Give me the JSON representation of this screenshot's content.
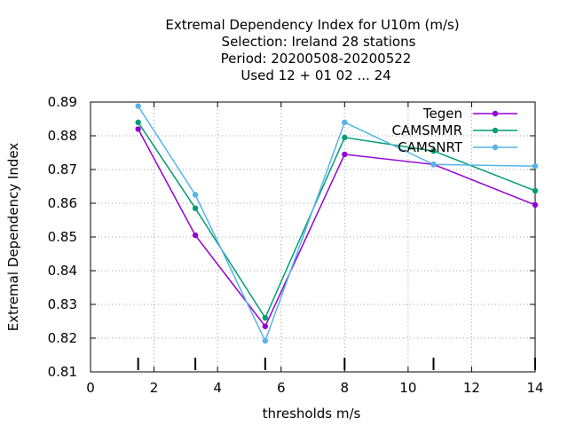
{
  "chart_data": {
    "type": "line",
    "title_lines": [
      "Extremal Dependency Index  for U10m (m/s)",
      "Selection: Ireland     28 stations",
      "Period: 20200508-20200522",
      "Used  12 + 01 02 ... 24"
    ],
    "xlabel": "thresholds m/s",
    "ylabel": "Extremal Dependency Index",
    "xlim": [
      0,
      14
    ],
    "ylim": [
      0.81,
      0.89
    ],
    "xticks": [
      0,
      2,
      4,
      6,
      8,
      10,
      12,
      14
    ],
    "yticks": [
      0.81,
      0.82,
      0.83,
      0.84,
      0.85,
      0.86,
      0.87,
      0.88,
      0.89
    ],
    "xtick_labels": [
      "0",
      "2",
      "4",
      "6",
      "8",
      "10",
      "12",
      "14"
    ],
    "ytick_labels": [
      "0.81",
      "0.82",
      "0.83",
      "0.84",
      "0.85",
      "0.86",
      "0.87",
      "0.88",
      "0.89"
    ],
    "grid": true,
    "legend_position": "top-right",
    "threshold_marks": [
      1.5,
      3.3,
      5.5,
      8.0,
      10.8,
      14.0
    ],
    "series": [
      {
        "name": "Tegen",
        "color": "#9400d3",
        "x": [
          1.5,
          3.3,
          5.5,
          8.0,
          10.8,
          14.0
        ],
        "y": [
          0.882,
          0.8505,
          0.8235,
          0.8745,
          0.8715,
          0.8595
        ]
      },
      {
        "name": "CAMSMMR",
        "color": "#009e73",
        "x": [
          1.5,
          3.3,
          5.5,
          8.0,
          10.8,
          14.0
        ],
        "y": [
          0.884,
          0.8585,
          0.826,
          0.8795,
          0.8755,
          0.8637
        ]
      },
      {
        "name": "CAMSNRT",
        "color": "#56b4e9",
        "x": [
          1.5,
          3.3,
          5.5,
          8.0,
          10.8,
          14.0
        ],
        "y": [
          0.8888,
          0.8625,
          0.8192,
          0.884,
          0.8715,
          0.871
        ]
      }
    ]
  }
}
